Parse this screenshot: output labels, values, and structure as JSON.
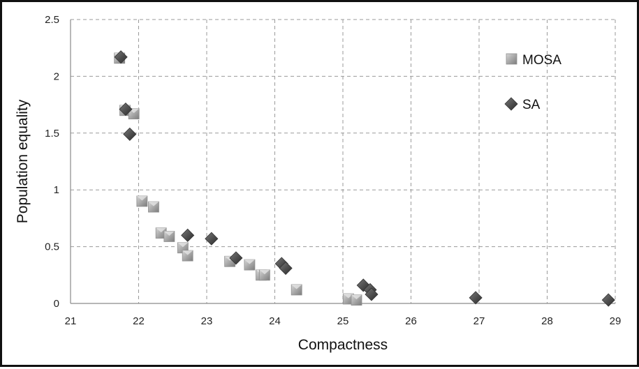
{
  "chart_data": {
    "type": "scatter",
    "xlabel": "Compactness",
    "ylabel": "Population equality",
    "xlim": [
      21,
      29
    ],
    "ylim": [
      0,
      2.5
    ],
    "x_ticks": [
      "21",
      "22",
      "23",
      "24",
      "25",
      "26",
      "27",
      "28",
      "29"
    ],
    "y_ticks": [
      "0",
      "0.5",
      "1",
      "1.5",
      "2",
      "2.5"
    ],
    "grid": true,
    "legend_position": "top-right",
    "series": [
      {
        "name": "MOSA",
        "marker": "square",
        "color": "#a8a8a8",
        "points": [
          {
            "x": 21.72,
            "y": 2.16
          },
          {
            "x": 21.8,
            "y": 1.7
          },
          {
            "x": 21.93,
            "y": 1.67
          },
          {
            "x": 22.05,
            "y": 0.9
          },
          {
            "x": 22.22,
            "y": 0.85
          },
          {
            "x": 22.33,
            "y": 0.62
          },
          {
            "x": 22.45,
            "y": 0.59
          },
          {
            "x": 22.65,
            "y": 0.49
          },
          {
            "x": 22.72,
            "y": 0.42
          },
          {
            "x": 23.34,
            "y": 0.37
          },
          {
            "x": 23.63,
            "y": 0.34
          },
          {
            "x": 23.8,
            "y": 0.25
          },
          {
            "x": 23.85,
            "y": 0.25
          },
          {
            "x": 24.32,
            "y": 0.12
          },
          {
            "x": 25.08,
            "y": 0.04
          },
          {
            "x": 25.2,
            "y": 0.03
          }
        ]
      },
      {
        "name": "SA",
        "marker": "diamond",
        "color": "#4d4d4d",
        "points": [
          {
            "x": 21.74,
            "y": 2.17
          },
          {
            "x": 21.81,
            "y": 1.71
          },
          {
            "x": 21.87,
            "y": 1.49
          },
          {
            "x": 22.72,
            "y": 0.6
          },
          {
            "x": 23.07,
            "y": 0.57
          },
          {
            "x": 23.43,
            "y": 0.4
          },
          {
            "x": 24.1,
            "y": 0.35
          },
          {
            "x": 24.16,
            "y": 0.31
          },
          {
            "x": 25.3,
            "y": 0.16
          },
          {
            "x": 25.4,
            "y": 0.12
          },
          {
            "x": 25.42,
            "y": 0.08
          },
          {
            "x": 26.95,
            "y": 0.05
          },
          {
            "x": 28.9,
            "y": 0.03
          }
        ]
      }
    ]
  }
}
